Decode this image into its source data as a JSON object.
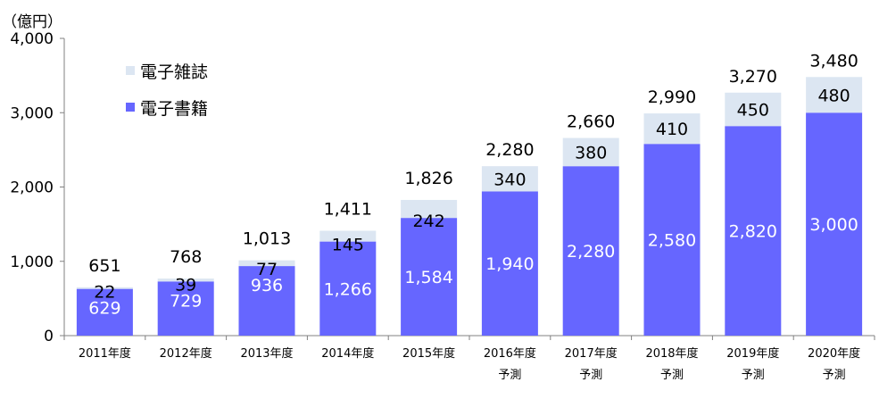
{
  "chart_data": {
    "type": "bar",
    "stacked": true,
    "unit_label": "（億円）",
    "categories": [
      "2011年度",
      "2012年度",
      "2013年度",
      "2014年度",
      "2015年度",
      "2016年度\n予測",
      "2017年度\n予測",
      "2018年度\n予測",
      "2019年度\n予測",
      "2020年度\n予測"
    ],
    "series": [
      {
        "name": "電子書籍",
        "color": "#6666FF",
        "values": [
          629,
          729,
          936,
          1266,
          1584,
          1940,
          2280,
          2580,
          2820,
          3000
        ]
      },
      {
        "name": "電子雑誌",
        "color": "#DCE6F2",
        "values": [
          22,
          39,
          77,
          145,
          242,
          340,
          380,
          410,
          450,
          480
        ]
      }
    ],
    "totals": [
      651,
      768,
      1013,
      1411,
      1826,
      2280,
      2660,
      2990,
      3270,
      3480
    ],
    "ylim": [
      0,
      4000
    ],
    "yticks": [
      0,
      1000,
      2000,
      3000,
      4000
    ],
    "legend": {
      "position": "top-left",
      "items": [
        "電子雑誌",
        "電子書籍"
      ]
    },
    "grid": false
  }
}
